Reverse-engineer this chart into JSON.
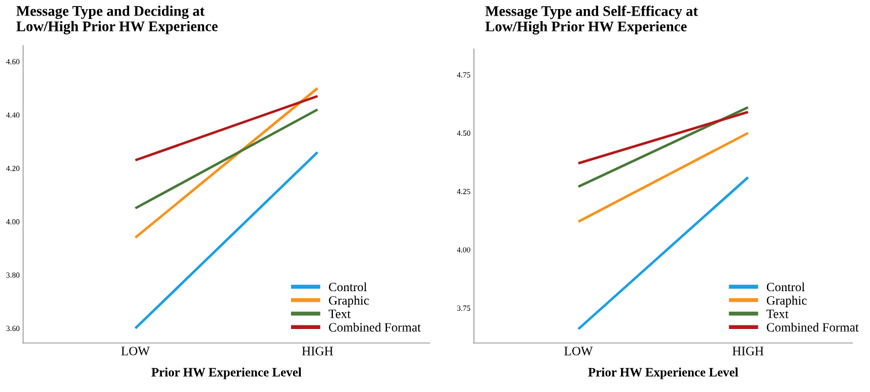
{
  "chart_data": [
    {
      "type": "line",
      "title": "Message Type and Deciding at\nLow/High Prior HW Experience",
      "xlabel": "Prior HW Experience Level",
      "categories": [
        "LOW",
        "HIGH"
      ],
      "ylim": [
        3.545,
        4.66
      ],
      "yticks": [
        {
          "value": 3.6,
          "label": "3.60"
        },
        {
          "value": 3.8,
          "label": "3.80"
        },
        {
          "value": 4.0,
          "label": "4.00"
        },
        {
          "value": 4.2,
          "label": "4.20"
        },
        {
          "value": 4.4,
          "label": "4.40"
        },
        {
          "value": 4.6,
          "label": "4.60"
        }
      ],
      "legend": "bottom right",
      "series": [
        {
          "name": "Control",
          "color": "#1aa0e6",
          "values": [
            3.6,
            4.26
          ]
        },
        {
          "name": "Graphic",
          "color": "#f7941d",
          "values": [
            3.94,
            4.5
          ]
        },
        {
          "name": "Text",
          "color": "#4a7a3a",
          "values": [
            4.05,
            4.42
          ]
        },
        {
          "name": "Combined Format",
          "color": "#b31b1b",
          "values": [
            4.23,
            4.47
          ]
        }
      ]
    },
    {
      "type": "line",
      "title": "Message Type and Self-Efficacy at\nLow/High Prior HW Experience",
      "xlabel": "Prior HW Experience Level",
      "categories": [
        "LOW",
        "HIGH"
      ],
      "ylim": [
        3.6,
        4.86
      ],
      "yticks": [
        {
          "value": 3.75,
          "label": "3.75"
        },
        {
          "value": 4.0,
          "label": "4.00"
        },
        {
          "value": 4.25,
          "label": "4.25"
        },
        {
          "value": 4.5,
          "label": "4.50"
        },
        {
          "value": 4.75,
          "label": "4.75"
        }
      ],
      "legend": "bottom right",
      "series": [
        {
          "name": "Control",
          "color": "#1aa0e6",
          "values": [
            3.66,
            4.31
          ]
        },
        {
          "name": "Graphic",
          "color": "#f7941d",
          "values": [
            4.12,
            4.5
          ]
        },
        {
          "name": "Text",
          "color": "#4a7a3a",
          "values": [
            4.27,
            4.61
          ]
        },
        {
          "name": "Combined Format",
          "color": "#b31b1b",
          "values": [
            4.37,
            4.59
          ]
        }
      ]
    }
  ]
}
